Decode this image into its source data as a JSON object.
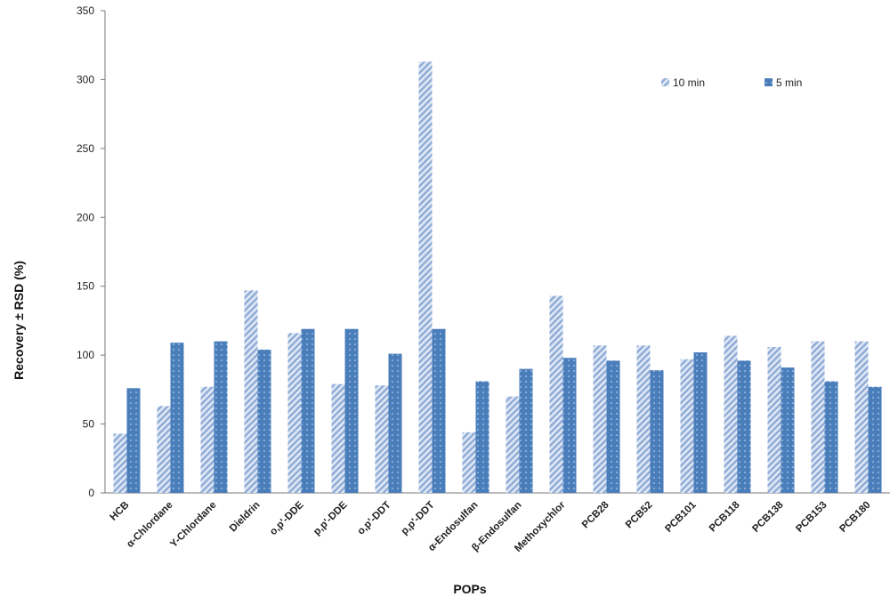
{
  "chart_data": {
    "type": "bar",
    "title": "",
    "xlabel": "POPs",
    "ylabel": "Recovery ± RSD (%)",
    "ylim": [
      0,
      350
    ],
    "yticks": [
      0,
      50,
      100,
      150,
      200,
      250,
      300,
      350
    ],
    "grid": false,
    "legend_position": "top-right",
    "categories": [
      "HCB",
      "α-Chlordane",
      "Υ-Chlordane",
      "Dieldrin",
      "o,p'-DDE",
      "p,p'-DDE",
      "o,p'-DDT",
      "p,p'-DDT",
      "α-Endosulfan",
      "β-Endosulfan",
      "Methoxychlor",
      "PCB28",
      "PCB52",
      "PCB101",
      "PCB118",
      "PCB138",
      "PCB153",
      "PCB180"
    ],
    "series": [
      {
        "name": "10 min",
        "color": "#9db6dc",
        "pattern": "diagonal-hatch",
        "values": [
          43,
          63,
          77,
          147,
          116,
          79,
          78,
          313,
          44,
          70,
          143,
          107,
          107,
          97,
          114,
          106,
          110,
          110
        ]
      },
      {
        "name": "5 min",
        "color": "#4a7ebb",
        "pattern": "solid-dotted",
        "values": [
          76,
          109,
          110,
          104,
          119,
          119,
          101,
          119,
          81,
          90,
          98,
          96,
          89,
          102,
          96,
          91,
          81,
          77
        ]
      }
    ]
  }
}
